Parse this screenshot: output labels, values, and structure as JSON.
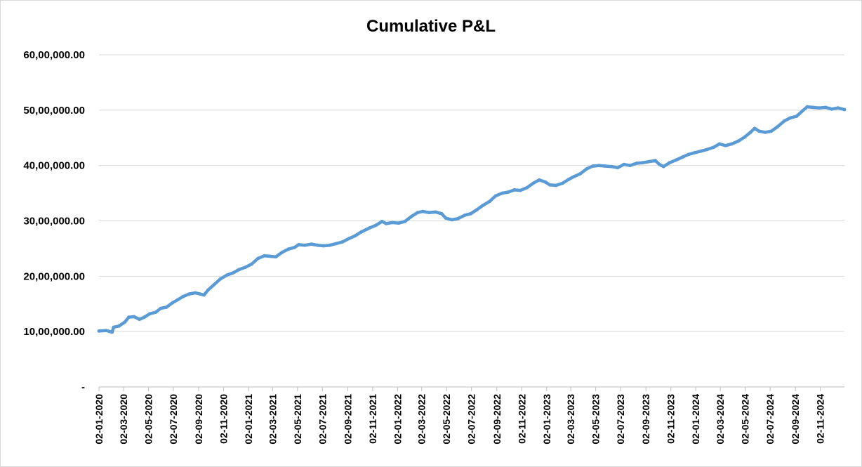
{
  "chart_data": {
    "type": "line",
    "title": "Cumulative P&L",
    "xlabel": "",
    "ylabel": "",
    "ylim": [
      0,
      6000000
    ],
    "xlim": [
      "2020-01-02",
      "2024-12-31"
    ],
    "grid": true,
    "legend": "none",
    "y_ticks": [
      {
        "value": 0,
        "label": "-"
      },
      {
        "value": 1000000,
        "label": "10,00,000.00"
      },
      {
        "value": 2000000,
        "label": "20,00,000.00"
      },
      {
        "value": 3000000,
        "label": "30,00,000.00"
      },
      {
        "value": 4000000,
        "label": "40,00,000.00"
      },
      {
        "value": 5000000,
        "label": "50,00,000.00"
      },
      {
        "value": 6000000,
        "label": "60,00,000.00"
      }
    ],
    "x_ticks": [
      {
        "value": "2020-01-02",
        "label": "02-01-2020"
      },
      {
        "value": "2020-03-02",
        "label": "02-03-2020"
      },
      {
        "value": "2020-05-02",
        "label": "02-05-2020"
      },
      {
        "value": "2020-07-02",
        "label": "02-07-2020"
      },
      {
        "value": "2020-09-02",
        "label": "02-09-2020"
      },
      {
        "value": "2020-11-02",
        "label": "02-11-2020"
      },
      {
        "value": "2021-01-02",
        "label": "02-01-2021"
      },
      {
        "value": "2021-03-02",
        "label": "02-03-2021"
      },
      {
        "value": "2021-05-02",
        "label": "02-05-2021"
      },
      {
        "value": "2021-07-02",
        "label": "02-07-2021"
      },
      {
        "value": "2021-09-02",
        "label": "02-09-2021"
      },
      {
        "value": "2021-11-02",
        "label": "02-11-2021"
      },
      {
        "value": "2022-01-02",
        "label": "02-01-2022"
      },
      {
        "value": "2022-03-02",
        "label": "02-03-2022"
      },
      {
        "value": "2022-05-02",
        "label": "02-05-2022"
      },
      {
        "value": "2022-07-02",
        "label": "02-07-2022"
      },
      {
        "value": "2022-09-02",
        "label": "02-09-2022"
      },
      {
        "value": "2022-11-02",
        "label": "02-11-2022"
      },
      {
        "value": "2023-01-02",
        "label": "02-01-2023"
      },
      {
        "value": "2023-03-02",
        "label": "02-03-2023"
      },
      {
        "value": "2023-05-02",
        "label": "02-05-2023"
      },
      {
        "value": "2023-07-02",
        "label": "02-07-2023"
      },
      {
        "value": "2023-09-02",
        "label": "02-09-2023"
      },
      {
        "value": "2023-11-02",
        "label": "02-11-2023"
      },
      {
        "value": "2024-01-02",
        "label": "02-01-2024"
      },
      {
        "value": "2024-03-02",
        "label": "02-03-2024"
      },
      {
        "value": "2024-05-02",
        "label": "02-05-2024"
      },
      {
        "value": "2024-07-02",
        "label": "02-07-2024"
      },
      {
        "value": "2024-09-02",
        "label": "02-09-2024"
      },
      {
        "value": "2024-11-02",
        "label": "02-11-2024"
      }
    ],
    "series": [
      {
        "color": "#5b9bd5",
        "points": [
          [
            "2020-01-02",
            1010000
          ],
          [
            "2020-01-20",
            1020000
          ],
          [
            "2020-02-03",
            990000
          ],
          [
            "2020-02-07",
            1080000
          ],
          [
            "2020-02-20",
            1100000
          ],
          [
            "2020-03-05",
            1170000
          ],
          [
            "2020-03-15",
            1260000
          ],
          [
            "2020-03-28",
            1270000
          ],
          [
            "2020-04-10",
            1220000
          ],
          [
            "2020-04-22",
            1260000
          ],
          [
            "2020-05-05",
            1320000
          ],
          [
            "2020-05-20",
            1350000
          ],
          [
            "2020-06-01",
            1420000
          ],
          [
            "2020-06-15",
            1440000
          ],
          [
            "2020-06-30",
            1520000
          ],
          [
            "2020-07-12",
            1570000
          ],
          [
            "2020-07-25",
            1630000
          ],
          [
            "2020-08-10",
            1680000
          ],
          [
            "2020-08-25",
            1700000
          ],
          [
            "2020-09-05",
            1680000
          ],
          [
            "2020-09-15",
            1660000
          ],
          [
            "2020-09-25",
            1750000
          ],
          [
            "2020-10-10",
            1850000
          ],
          [
            "2020-10-25",
            1950000
          ],
          [
            "2020-11-10",
            2020000
          ],
          [
            "2020-11-25",
            2060000
          ],
          [
            "2020-12-10",
            2120000
          ],
          [
            "2020-12-25",
            2160000
          ],
          [
            "2021-01-10",
            2220000
          ],
          [
            "2021-01-25",
            2320000
          ],
          [
            "2021-02-10",
            2370000
          ],
          [
            "2021-02-25",
            2360000
          ],
          [
            "2021-03-10",
            2350000
          ],
          [
            "2021-03-25",
            2430000
          ],
          [
            "2021-04-10",
            2490000
          ],
          [
            "2021-04-25",
            2520000
          ],
          [
            "2021-05-05",
            2570000
          ],
          [
            "2021-05-20",
            2560000
          ],
          [
            "2021-06-05",
            2580000
          ],
          [
            "2021-06-20",
            2560000
          ],
          [
            "2021-07-05",
            2550000
          ],
          [
            "2021-07-20",
            2560000
          ],
          [
            "2021-08-05",
            2590000
          ],
          [
            "2021-08-20",
            2620000
          ],
          [
            "2021-09-05",
            2680000
          ],
          [
            "2021-09-20",
            2730000
          ],
          [
            "2021-10-05",
            2800000
          ],
          [
            "2021-10-25",
            2870000
          ],
          [
            "2021-11-10",
            2920000
          ],
          [
            "2021-11-25",
            2990000
          ],
          [
            "2021-12-05",
            2950000
          ],
          [
            "2021-12-20",
            2970000
          ],
          [
            "2022-01-05",
            2960000
          ],
          [
            "2022-01-20",
            2990000
          ],
          [
            "2022-02-05",
            3080000
          ],
          [
            "2022-02-20",
            3150000
          ],
          [
            "2022-03-05",
            3170000
          ],
          [
            "2022-03-20",
            3150000
          ],
          [
            "2022-04-05",
            3160000
          ],
          [
            "2022-04-20",
            3130000
          ],
          [
            "2022-04-30",
            3050000
          ],
          [
            "2022-05-15",
            3020000
          ],
          [
            "2022-05-30",
            3040000
          ],
          [
            "2022-06-15",
            3100000
          ],
          [
            "2022-06-30",
            3130000
          ],
          [
            "2022-07-15",
            3200000
          ],
          [
            "2022-07-30",
            3280000
          ],
          [
            "2022-08-15",
            3350000
          ],
          [
            "2022-08-30",
            3450000
          ],
          [
            "2022-09-15",
            3500000
          ],
          [
            "2022-09-30",
            3520000
          ],
          [
            "2022-10-15",
            3560000
          ],
          [
            "2022-10-30",
            3550000
          ],
          [
            "2022-11-15",
            3600000
          ],
          [
            "2022-11-30",
            3680000
          ],
          [
            "2022-12-15",
            3740000
          ],
          [
            "2022-12-30",
            3700000
          ],
          [
            "2023-01-10",
            3650000
          ],
          [
            "2023-01-25",
            3640000
          ],
          [
            "2023-02-10",
            3680000
          ],
          [
            "2023-02-25",
            3750000
          ],
          [
            "2023-03-10",
            3800000
          ],
          [
            "2023-03-25",
            3850000
          ],
          [
            "2023-04-10",
            3940000
          ],
          [
            "2023-04-25",
            3990000
          ],
          [
            "2023-05-10",
            4000000
          ],
          [
            "2023-05-25",
            3990000
          ],
          [
            "2023-06-10",
            3980000
          ],
          [
            "2023-06-25",
            3960000
          ],
          [
            "2023-07-10",
            4020000
          ],
          [
            "2023-07-25",
            4000000
          ],
          [
            "2023-08-10",
            4040000
          ],
          [
            "2023-08-25",
            4050000
          ],
          [
            "2023-09-10",
            4070000
          ],
          [
            "2023-09-25",
            4090000
          ],
          [
            "2023-10-05",
            4020000
          ],
          [
            "2023-10-15",
            3980000
          ],
          [
            "2023-10-30",
            4050000
          ],
          [
            "2023-11-15",
            4100000
          ],
          [
            "2023-11-30",
            4150000
          ],
          [
            "2023-12-15",
            4200000
          ],
          [
            "2023-12-30",
            4230000
          ],
          [
            "2024-01-15",
            4260000
          ],
          [
            "2024-01-30",
            4290000
          ],
          [
            "2024-02-15",
            4330000
          ],
          [
            "2024-02-29",
            4390000
          ],
          [
            "2024-03-15",
            4360000
          ],
          [
            "2024-03-30",
            4390000
          ],
          [
            "2024-04-15",
            4440000
          ],
          [
            "2024-04-30",
            4510000
          ],
          [
            "2024-05-15",
            4600000
          ],
          [
            "2024-05-25",
            4670000
          ],
          [
            "2024-06-05",
            4620000
          ],
          [
            "2024-06-20",
            4600000
          ],
          [
            "2024-07-05",
            4620000
          ],
          [
            "2024-07-20",
            4700000
          ],
          [
            "2024-08-05",
            4800000
          ],
          [
            "2024-08-20",
            4860000
          ],
          [
            "2024-09-05",
            4890000
          ],
          [
            "2024-09-20",
            4990000
          ],
          [
            "2024-10-01",
            5060000
          ],
          [
            "2024-10-15",
            5050000
          ],
          [
            "2024-10-30",
            5040000
          ],
          [
            "2024-11-15",
            5050000
          ],
          [
            "2024-11-30",
            5020000
          ],
          [
            "2024-12-15",
            5040000
          ],
          [
            "2024-12-31",
            5010000
          ]
        ]
      }
    ]
  }
}
